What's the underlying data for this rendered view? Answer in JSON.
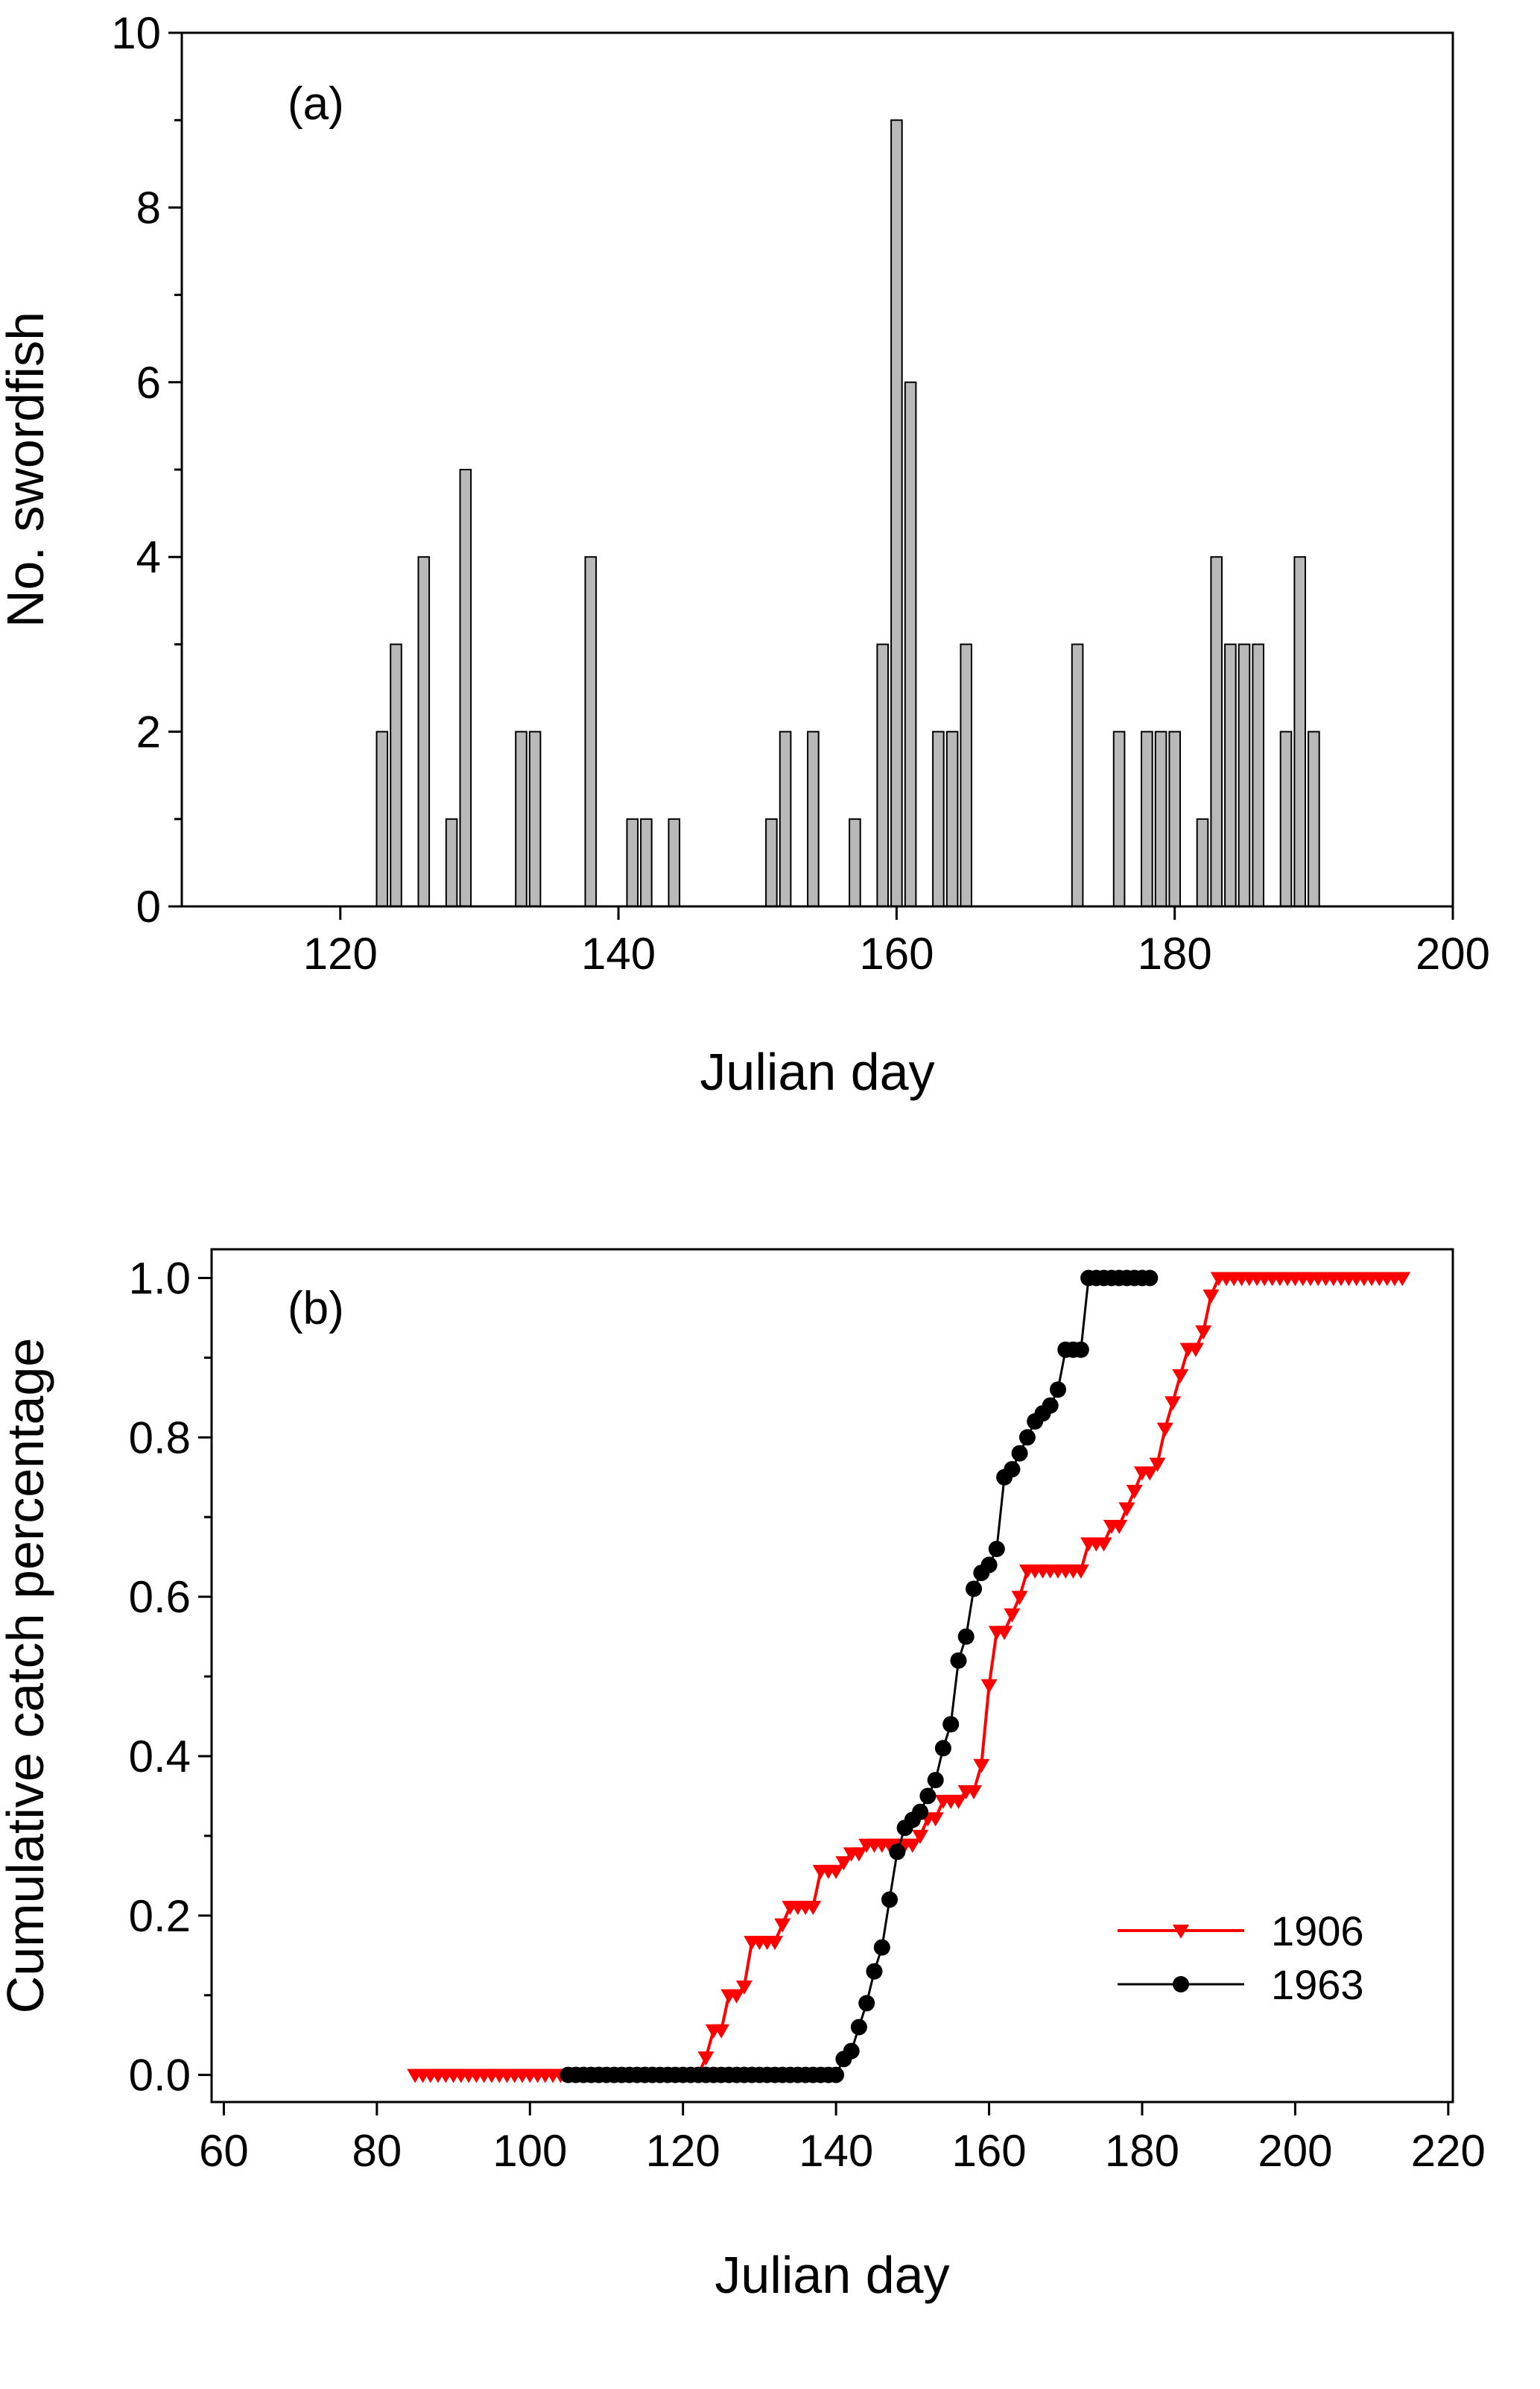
{
  "figure": {
    "background": "#ffffff",
    "panels": [
      {
        "id": "a",
        "label": "(a)"
      },
      {
        "id": "b",
        "label": "(b)"
      }
    ]
  },
  "chart_data": [
    {
      "type": "bar",
      "panel": "a",
      "title": "",
      "xlabel": "Julian day",
      "ylabel": "No. swordfish",
      "xlim": [
        108.6,
        200
      ],
      "ylim": [
        0,
        10
      ],
      "x_ticks": [
        120,
        140,
        160,
        180,
        200
      ],
      "x_tick_labels": [
        "120",
        "140",
        "160",
        "180",
        "200"
      ],
      "y_ticks": [
        0,
        2,
        4,
        6,
        8,
        10
      ],
      "y_tick_labels": [
        "0",
        "2",
        "4",
        "6",
        "8",
        "10"
      ],
      "y_minor_ticks": [
        1,
        3,
        5,
        7,
        9
      ],
      "grid": false,
      "bar_width_days": 0.78,
      "bar_fill": "#b9b9b9",
      "bar_edge": "#000000",
      "bars": [
        [
          123,
          2
        ],
        [
          124,
          3
        ],
        [
          126,
          4
        ],
        [
          128,
          1
        ],
        [
          129,
          5
        ],
        [
          133,
          2
        ],
        [
          134,
          2
        ],
        [
          138,
          4
        ],
        [
          141,
          1
        ],
        [
          142,
          1
        ],
        [
          144,
          1
        ],
        [
          151,
          1
        ],
        [
          152,
          2
        ],
        [
          154,
          2
        ],
        [
          157,
          1
        ],
        [
          159,
          3
        ],
        [
          160,
          9
        ],
        [
          161,
          6
        ],
        [
          163,
          2
        ],
        [
          164,
          2
        ],
        [
          165,
          3
        ],
        [
          173,
          3
        ],
        [
          176,
          2
        ],
        [
          178,
          2
        ],
        [
          179,
          2
        ],
        [
          180,
          2
        ],
        [
          182,
          1
        ],
        [
          183,
          4
        ],
        [
          184,
          3
        ],
        [
          185,
          3
        ],
        [
          186,
          3
        ],
        [
          188,
          2
        ],
        [
          189,
          4
        ],
        [
          190,
          2
        ]
      ]
    },
    {
      "type": "line",
      "panel": "b",
      "title": "",
      "xlabel": "Julian day",
      "ylabel": "Cumulative catch percentage",
      "xlim": [
        58.4,
        220.6
      ],
      "ylim": [
        -0.034,
        1.036
      ],
      "x_ticks": [
        60,
        80,
        100,
        120,
        140,
        160,
        180,
        200,
        220
      ],
      "x_tick_labels": [
        "60",
        "80",
        "100",
        "120",
        "140",
        "160",
        "180",
        "200",
        "220"
      ],
      "y_ticks": [
        0,
        0.2,
        0.4,
        0.6,
        0.8,
        1
      ],
      "y_tick_labels": [
        "0.0",
        "0.2",
        "0.4",
        "0.6",
        "0.8",
        "1.0"
      ],
      "y_minor_ticks": [
        0.1,
        0.3,
        0.5,
        0.7,
        0.9
      ],
      "grid": false,
      "legend": {
        "position": "lower-right",
        "entries": [
          "1906",
          "1963"
        ]
      },
      "series": [
        {
          "name": "1906",
          "color": "#ff0000",
          "marker": "triangle-down",
          "line_width": 4,
          "x_start": 85,
          "x_step": 1,
          "y": [
            0,
            0,
            0,
            0,
            0,
            0,
            0,
            0,
            0,
            0,
            0,
            0,
            0,
            0,
            0,
            0,
            0,
            0,
            0,
            0,
            0,
            0,
            0,
            0,
            0,
            0,
            0,
            0,
            0,
            0,
            0,
            0,
            0,
            0,
            0,
            0,
            0,
            0,
            0.022,
            0.056,
            0.056,
            0.1,
            0.1,
            0.111,
            0.167,
            0.167,
            0.167,
            0.167,
            0.189,
            0.211,
            0.211,
            0.211,
            0.211,
            0.256,
            0.256,
            0.256,
            0.267,
            0.278,
            0.278,
            0.289,
            0.289,
            0.289,
            0.289,
            0.289,
            0.289,
            0.289,
            0.3,
            0.322,
            0.322,
            0.344,
            0.344,
            0.344,
            0.356,
            0.356,
            0.389,
            0.489,
            0.556,
            0.556,
            0.578,
            0.6,
            0.633,
            0.633,
            0.633,
            0.633,
            0.633,
            0.633,
            0.633,
            0.633,
            0.667,
            0.667,
            0.667,
            0.689,
            0.689,
            0.711,
            0.733,
            0.756,
            0.756,
            0.767,
            0.811,
            0.844,
            0.878,
            0.911,
            0.911,
            0.933,
            0.978,
            1,
            1,
            1,
            1,
            1,
            1,
            1,
            1,
            1,
            1,
            1,
            1,
            1,
            1,
            1,
            1,
            1,
            1,
            1,
            1,
            1,
            1,
            1,
            1,
            1
          ]
        },
        {
          "name": "1963",
          "color": "#000000",
          "marker": "circle",
          "line_width": 3,
          "x_start": 105,
          "x_step": 1,
          "y": [
            0,
            0,
            0,
            0,
            0,
            0,
            0,
            0,
            0,
            0,
            0,
            0,
            0,
            0,
            0,
            0,
            0,
            0,
            0,
            0,
            0,
            0,
            0,
            0,
            0,
            0,
            0,
            0,
            0,
            0,
            0,
            0,
            0,
            0,
            0,
            0,
            0.02,
            0.03,
            0.06,
            0.09,
            0.13,
            0.16,
            0.22,
            0.28,
            0.31,
            0.32,
            0.33,
            0.35,
            0.37,
            0.41,
            0.44,
            0.52,
            0.55,
            0.61,
            0.63,
            0.64,
            0.66,
            0.75,
            0.76,
            0.78,
            0.8,
            0.82,
            0.83,
            0.84,
            0.86,
            0.91,
            0.91,
            0.91,
            1,
            1,
            1,
            1,
            1,
            1,
            1,
            1,
            1
          ]
        }
      ]
    }
  ]
}
